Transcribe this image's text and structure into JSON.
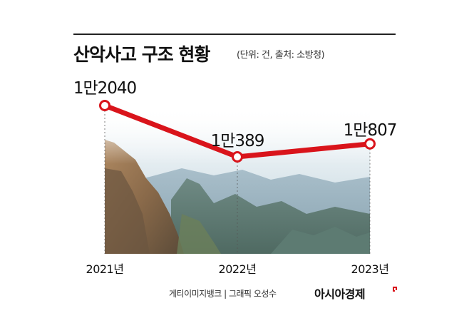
{
  "header": {
    "title": "산악사고 구조 현황",
    "subtitle": "(단위: 건, 출처: 소방청)"
  },
  "footer": {
    "credit": "게티이미지뱅크 | 그래픽 오성수",
    "brand": "아시아경제"
  },
  "colors": {
    "line": "#d9141b",
    "marker_fill": "#ffffff",
    "text": "#111111"
  },
  "chart_data": {
    "type": "line",
    "categories": [
      "2021년",
      "2022년",
      "2023년"
    ],
    "values": [
      12040,
      10389,
      10807
    ],
    "data_labels": [
      "1만2040",
      "1만389",
      "1만807"
    ],
    "grid": false,
    "legend": "none",
    "background": "mountain photograph"
  }
}
